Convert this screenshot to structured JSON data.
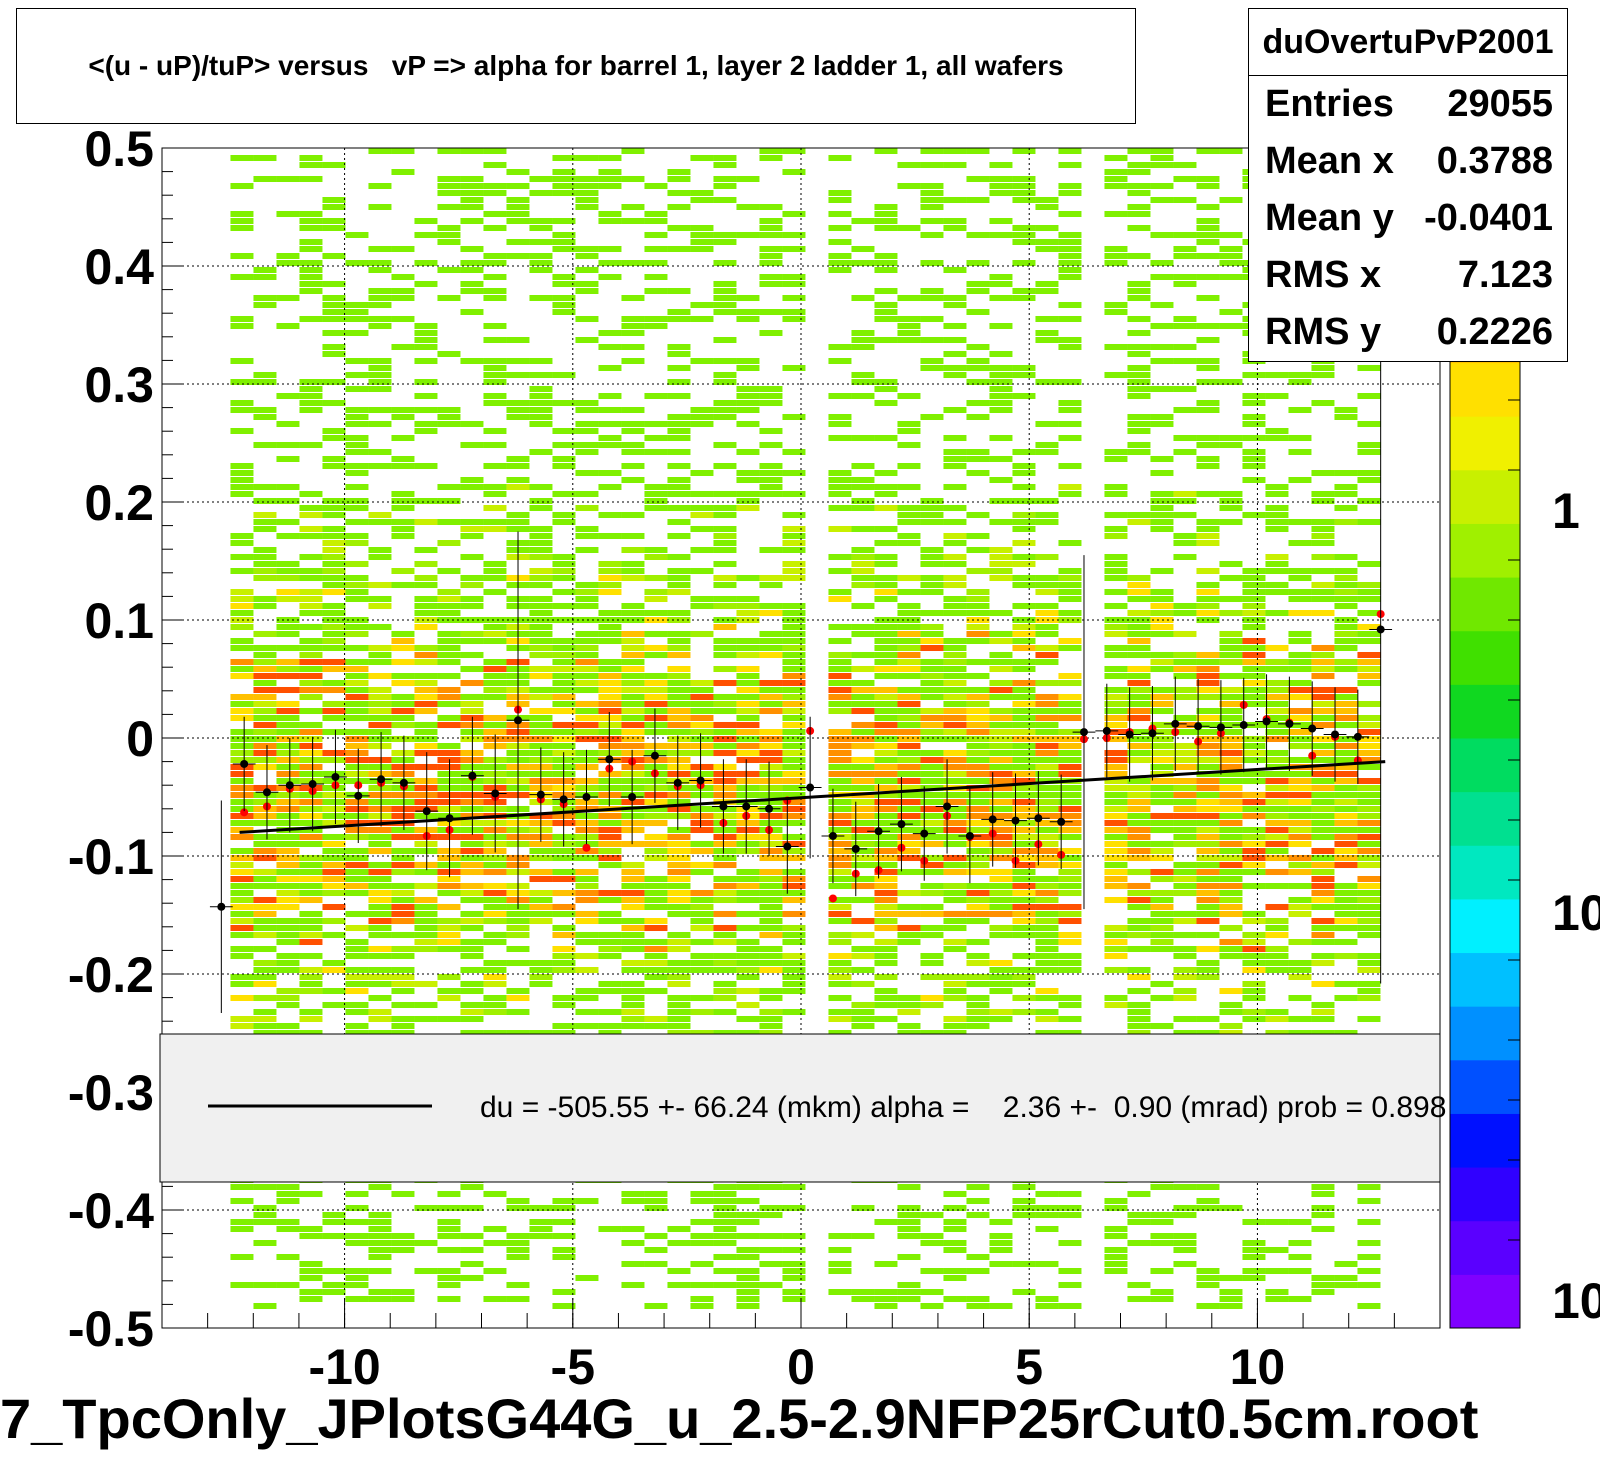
{
  "title": "<(u - uP)/tuP> versus   vP => alpha for barrel 1, layer 2 ladder 1, all wafers",
  "stats": {
    "name": "duOvertuPvP2001",
    "rows": [
      {
        "label": "Entries",
        "value": "29055"
      },
      {
        "label": "Mean x",
        "value": "0.3788"
      },
      {
        "label": "Mean y",
        "value": "-0.0401"
      },
      {
        "label": "RMS x",
        "value": "7.123"
      },
      {
        "label": "RMS y",
        "value": "0.2226"
      }
    ]
  },
  "legend": {
    "text": "du = -505.55 +- 66.24 (mkm) alpha =    2.36 +-  0.90 (mrad) prob = 0.898"
  },
  "footer": "7_TpcOnly_JPlotsG44G_u_2.5-2.9NFP25rCut0.5cm.root",
  "colors": {
    "palette": [
      "#7f00ff",
      "#5a00ff",
      "#3000ff",
      "#0010ff",
      "#0050ff",
      "#0090ff",
      "#00c0ff",
      "#00f0ff",
      "#00e8c0",
      "#00e090",
      "#00dc60",
      "#10d820",
      "#40e000",
      "#70e800",
      "#a0f000",
      "#c8f000",
      "#f0f000",
      "#ffe000",
      "#ffc000",
      "#ff9000",
      "#ff5000",
      "#ff2000"
    ],
    "fit_line": "#000000",
    "points_black": "#000000",
    "points_red": "#ff0000"
  },
  "chart_data": {
    "type": "heatmap",
    "xlim": [
      -14,
      14
    ],
    "ylim": [
      -0.5,
      0.5
    ],
    "x_ticks": [
      -10,
      -5,
      0,
      5,
      10
    ],
    "y_ticks": [
      -0.5,
      -0.4,
      -0.3,
      -0.2,
      -0.1,
      0,
      0.1,
      0.2,
      0.3,
      0.4,
      0.5
    ],
    "colorbar_labels": [
      "1",
      "10",
      "10"
    ],
    "grid": true,
    "fit_line": {
      "x": [
        -12.3,
        12.8
      ],
      "y": [
        -0.08,
        -0.02
      ]
    },
    "profile_black": [
      {
        "x": -12.7,
        "y": -0.143,
        "err": 0.09
      },
      {
        "x": -12.2,
        "y": -0.022,
        "err": 0.04
      },
      {
        "x": -11.7,
        "y": -0.046,
        "err": 0.04
      },
      {
        "x": -11.2,
        "y": -0.04,
        "err": 0.04
      },
      {
        "x": -10.7,
        "y": -0.039,
        "err": 0.04
      },
      {
        "x": -10.2,
        "y": -0.033,
        "err": 0.04
      },
      {
        "x": -9.7,
        "y": -0.049,
        "err": 0.04
      },
      {
        "x": -9.2,
        "y": -0.035,
        "err": 0.04
      },
      {
        "x": -8.7,
        "y": -0.038,
        "err": 0.04
      },
      {
        "x": -8.2,
        "y": -0.062,
        "err": 0.05
      },
      {
        "x": -7.7,
        "y": -0.068,
        "err": 0.05
      },
      {
        "x": -7.2,
        "y": -0.032,
        "err": 0.05
      },
      {
        "x": -6.7,
        "y": -0.047,
        "err": 0.05
      },
      {
        "x": -6.2,
        "y": 0.015,
        "err": 0.16
      },
      {
        "x": -5.7,
        "y": -0.048,
        "err": 0.04
      },
      {
        "x": -5.2,
        "y": -0.052,
        "err": 0.04
      },
      {
        "x": -4.7,
        "y": -0.05,
        "err": 0.04
      },
      {
        "x": -4.2,
        "y": -0.018,
        "err": 0.04
      },
      {
        "x": -3.7,
        "y": -0.05,
        "err": 0.04
      },
      {
        "x": -3.2,
        "y": -0.015,
        "err": 0.04
      },
      {
        "x": -2.7,
        "y": -0.038,
        "err": 0.04
      },
      {
        "x": -2.2,
        "y": -0.036,
        "err": 0.04
      },
      {
        "x": -1.7,
        "y": -0.058,
        "err": 0.04
      },
      {
        "x": -1.2,
        "y": -0.058,
        "err": 0.04
      },
      {
        "x": -0.7,
        "y": -0.06,
        "err": 0.04
      },
      {
        "x": -0.3,
        "y": -0.092,
        "err": 0.04
      },
      {
        "x": 0.2,
        "y": -0.042,
        "err": 0.06
      },
      {
        "x": 0.7,
        "y": -0.083,
        "err": 0.04
      },
      {
        "x": 1.2,
        "y": -0.094,
        "err": 0.04
      },
      {
        "x": 1.7,
        "y": -0.079,
        "err": 0.04
      },
      {
        "x": 2.2,
        "y": -0.073,
        "err": 0.04
      },
      {
        "x": 2.7,
        "y": -0.081,
        "err": 0.04
      },
      {
        "x": 3.2,
        "y": -0.058,
        "err": 0.04
      },
      {
        "x": 3.7,
        "y": -0.083,
        "err": 0.04
      },
      {
        "x": 4.2,
        "y": -0.069,
        "err": 0.04
      },
      {
        "x": 4.7,
        "y": -0.07,
        "err": 0.04
      },
      {
        "x": 5.2,
        "y": -0.068,
        "err": 0.04
      },
      {
        "x": 5.7,
        "y": -0.071,
        "err": 0.04
      },
      {
        "x": 6.2,
        "y": 0.005,
        "err": 0.15
      },
      {
        "x": 6.7,
        "y": 0.006,
        "err": 0.04
      },
      {
        "x": 7.2,
        "y": 0.003,
        "err": 0.04
      },
      {
        "x": 7.7,
        "y": 0.004,
        "err": 0.04
      },
      {
        "x": 8.2,
        "y": 0.012,
        "err": 0.04
      },
      {
        "x": 8.7,
        "y": 0.01,
        "err": 0.04
      },
      {
        "x": 9.2,
        "y": 0.009,
        "err": 0.04
      },
      {
        "x": 9.7,
        "y": 0.011,
        "err": 0.04
      },
      {
        "x": 10.2,
        "y": 0.014,
        "err": 0.04
      },
      {
        "x": 10.7,
        "y": 0.012,
        "err": 0.04
      },
      {
        "x": 11.2,
        "y": 0.008,
        "err": 0.04
      },
      {
        "x": 11.7,
        "y": 0.003,
        "err": 0.04
      },
      {
        "x": 12.2,
        "y": 0.001,
        "err": 0.04
      },
      {
        "x": 12.7,
        "y": 0.092,
        "err": 0.3
      }
    ],
    "profile_red": [
      {
        "x": -12.2,
        "y": -0.063
      },
      {
        "x": -11.7,
        "y": -0.058
      },
      {
        "x": -11.2,
        "y": -0.043
      },
      {
        "x": -10.7,
        "y": -0.045
      },
      {
        "x": -10.2,
        "y": -0.04
      },
      {
        "x": -9.7,
        "y": -0.04
      },
      {
        "x": -9.2,
        "y": -0.038
      },
      {
        "x": -8.7,
        "y": -0.041
      },
      {
        "x": -8.2,
        "y": -0.083
      },
      {
        "x": -7.7,
        "y": -0.078
      },
      {
        "x": -7.2,
        "y": -0.033
      },
      {
        "x": -6.7,
        "y": -0.05
      },
      {
        "x": -6.2,
        "y": 0.024
      },
      {
        "x": -5.7,
        "y": -0.052
      },
      {
        "x": -5.2,
        "y": -0.056
      },
      {
        "x": -4.7,
        "y": -0.093
      },
      {
        "x": -4.2,
        "y": -0.026
      },
      {
        "x": -3.7,
        "y": -0.02
      },
      {
        "x": -3.2,
        "y": -0.03
      },
      {
        "x": -2.7,
        "y": -0.041
      },
      {
        "x": -2.2,
        "y": -0.04
      },
      {
        "x": -1.7,
        "y": -0.072
      },
      {
        "x": -1.2,
        "y": -0.066
      },
      {
        "x": -0.7,
        "y": -0.078
      },
      {
        "x": -0.3,
        "y": -0.053
      },
      {
        "x": 0.2,
        "y": 0.006
      },
      {
        "x": 0.7,
        "y": -0.136
      },
      {
        "x": 1.2,
        "y": -0.115
      },
      {
        "x": 1.7,
        "y": -0.112
      },
      {
        "x": 2.2,
        "y": -0.093
      },
      {
        "x": 2.7,
        "y": -0.104
      },
      {
        "x": 3.2,
        "y": -0.066
      },
      {
        "x": 3.7,
        "y": -0.084
      },
      {
        "x": 4.2,
        "y": -0.081
      },
      {
        "x": 4.7,
        "y": -0.104
      },
      {
        "x": 5.2,
        "y": -0.09
      },
      {
        "x": 5.7,
        "y": -0.099
      },
      {
        "x": 6.2,
        "y": -0.001
      },
      {
        "x": 6.7,
        "y": 0.0
      },
      {
        "x": 7.2,
        "y": 0.005
      },
      {
        "x": 7.7,
        "y": 0.008
      },
      {
        "x": 8.2,
        "y": 0.005
      },
      {
        "x": 8.7,
        "y": -0.003
      },
      {
        "x": 9.2,
        "y": 0.004
      },
      {
        "x": 9.7,
        "y": 0.028
      },
      {
        "x": 10.2,
        "y": 0.016
      },
      {
        "x": 10.7,
        "y": 0.013
      },
      {
        "x": 11.2,
        "y": -0.015
      },
      {
        "x": 11.7,
        "y": 0.001
      },
      {
        "x": 12.2,
        "y": -0.019
      },
      {
        "x": 12.7,
        "y": 0.105
      }
    ]
  }
}
